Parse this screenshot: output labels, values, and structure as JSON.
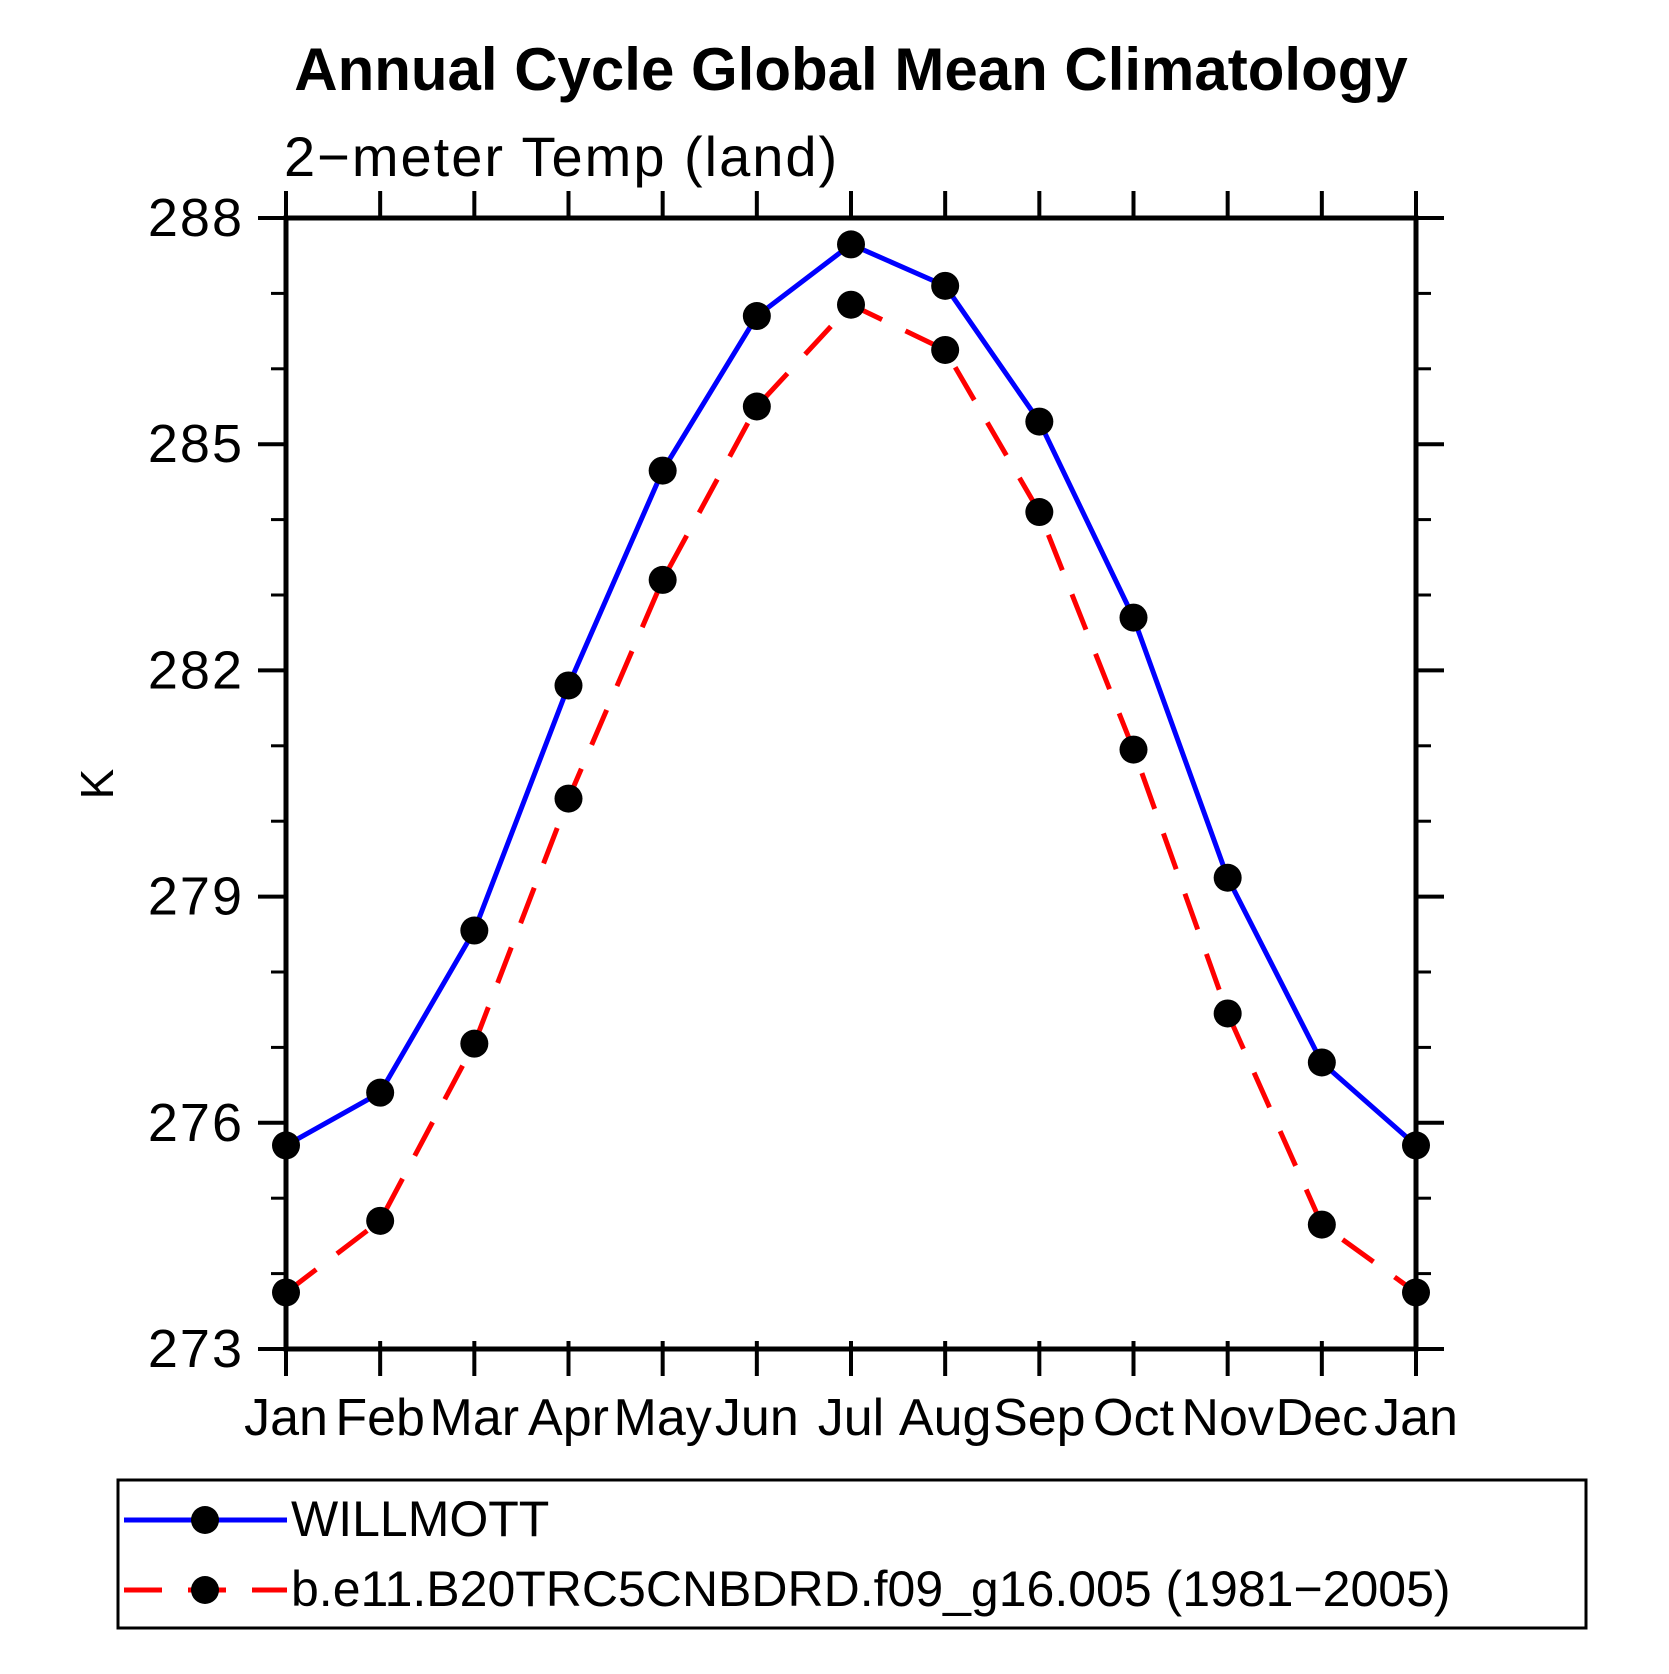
{
  "chart_data": {
    "type": "line",
    "title": "Annual Cycle Global Mean Climatology",
    "subtitle": "2−meter Temp (land)",
    "ylabel": "K",
    "xlabel": "",
    "categories": [
      "Jan",
      "Feb",
      "Mar",
      "Apr",
      "May",
      "Jun",
      "Jul",
      "Aug",
      "Sep",
      "Oct",
      "Nov",
      "Dec",
      "Jan"
    ],
    "ylim": [
      273,
      288
    ],
    "ytick_major": [
      273,
      276,
      279,
      282,
      285,
      288
    ],
    "ytick_minor_step": 1,
    "grid": false,
    "legend_position": "bottom-left",
    "axis_color": "#000000",
    "marker_shape": "filled-circle",
    "marker_color": "#000000",
    "series": [
      {
        "name": "WILLMOTT",
        "color": "#0000ff",
        "line_style": "solid",
        "values": [
          275.7,
          276.4,
          278.55,
          281.8,
          284.65,
          286.7,
          287.65,
          287.1,
          285.3,
          282.7,
          279.25,
          276.8,
          275.7
        ]
      },
      {
        "name": "b.e11.B20TRC5CNBDRD.f09_g16.005 (1981−2005)",
        "color": "#ff0000",
        "line_style": "dashed",
        "values": [
          273.75,
          274.7,
          277.05,
          280.3,
          283.2,
          285.5,
          286.85,
          286.25,
          284.1,
          280.95,
          277.45,
          274.65,
          273.75
        ]
      }
    ]
  }
}
